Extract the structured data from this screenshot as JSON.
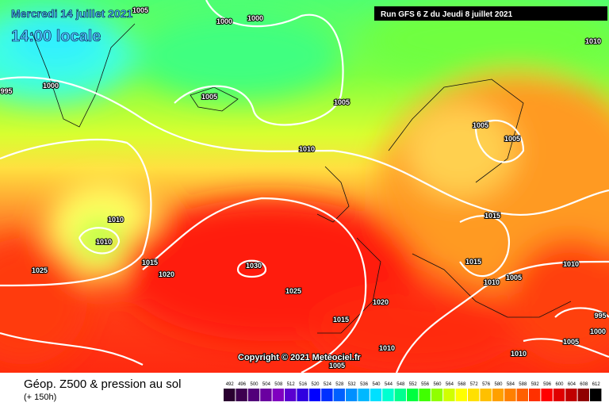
{
  "header": {
    "title": "Mercredi 14 juillet 2021",
    "time": "14:00 locale",
    "run": "Run GFS 6 Z du Jeudi 8 juillet 2021"
  },
  "copyright": "Copyright © 2021 Meteociel.fr",
  "legend": {
    "title": "Géop. Z500 & pression au sol",
    "subtitle": "(+ 150h)"
  },
  "scale": {
    "values": [
      492,
      496,
      500,
      504,
      508,
      512,
      516,
      520,
      524,
      528,
      532,
      536,
      540,
      544,
      548,
      552,
      556,
      560,
      564,
      568,
      572,
      576,
      580,
      584,
      588,
      592,
      596,
      600,
      604,
      608,
      612
    ],
    "colors": [
      "#2a0030",
      "#3d0050",
      "#52007a",
      "#6a00a0",
      "#8000c0",
      "#5a00d0",
      "#3000e0",
      "#0000ff",
      "#0030ff",
      "#0060ff",
      "#0090ff",
      "#00b8ff",
      "#00e0ff",
      "#00ffd0",
      "#00ff90",
      "#00ff40",
      "#40ff00",
      "#90ff00",
      "#d0ff00",
      "#ffff00",
      "#ffe000",
      "#ffc000",
      "#ffa000",
      "#ff8000",
      "#ff6000",
      "#ff3000",
      "#ff0000",
      "#e00000",
      "#c00000",
      "#900000",
      "#000000"
    ]
  },
  "isobar_labels": [
    1005,
    1000,
    1000,
    1000,
    995,
    1005,
    1005,
    1010,
    1010,
    1005,
    1005,
    1010,
    1010,
    1015,
    1020,
    1025,
    1030,
    1015,
    1015,
    1010,
    1005,
    1010,
    1025,
    1020,
    1015,
    1010,
    1005,
    1010,
    1005,
    995,
    1000
  ]
}
